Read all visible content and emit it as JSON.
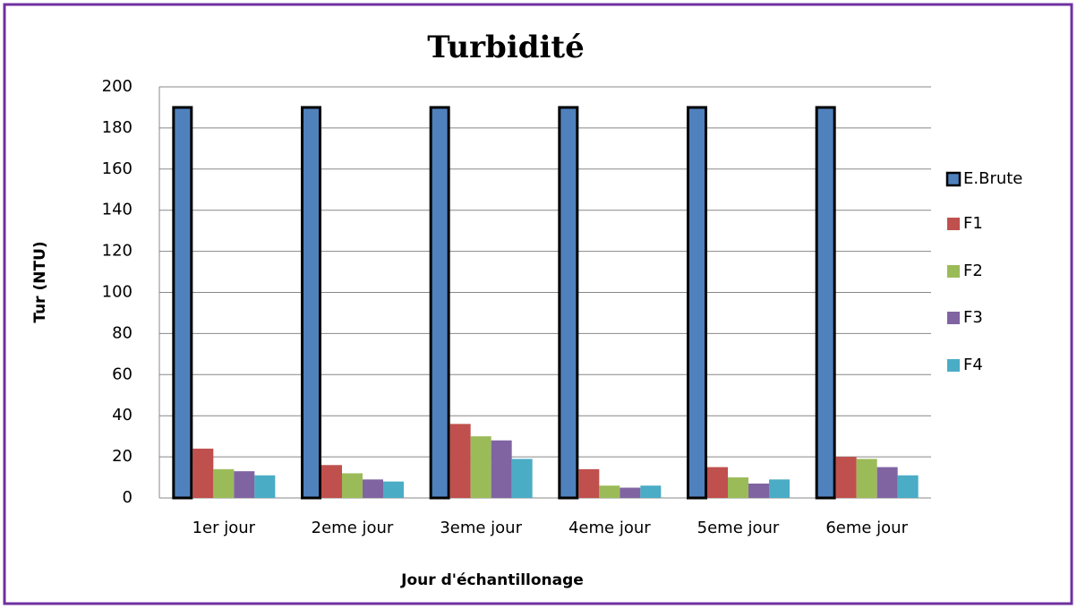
{
  "chart_data": {
    "type": "bar",
    "title": "Turbidité",
    "xlabel": "Jour d'échantillonage",
    "ylabel": "Tur (NTU)",
    "categories": [
      "1er jour",
      "2eme jour",
      "3eme jour",
      "4eme jour",
      "5eme jour",
      "6eme jour"
    ],
    "series": [
      {
        "name": "E.Brute",
        "color": "#4f81bd",
        "edgecolor": "#000000",
        "values": [
          190,
          190,
          190,
          190,
          190,
          190
        ]
      },
      {
        "name": "F1",
        "color": "#c0504d",
        "values": [
          24,
          16,
          36,
          14,
          15,
          20
        ]
      },
      {
        "name": "F2",
        "color": "#9bbb59",
        "values": [
          14,
          12,
          30,
          6,
          10,
          19
        ]
      },
      {
        "name": "F3",
        "color": "#8064a2",
        "values": [
          13,
          9,
          28,
          5,
          7,
          15
        ]
      },
      {
        "name": "F4",
        "color": "#4bacc6",
        "values": [
          11,
          8,
          19,
          6,
          9,
          11
        ]
      }
    ],
    "ylim": [
      0,
      200
    ],
    "yticks": [
      0,
      20,
      40,
      60,
      80,
      100,
      120,
      140,
      160,
      180,
      200
    ],
    "grid": true,
    "legend": "right"
  }
}
